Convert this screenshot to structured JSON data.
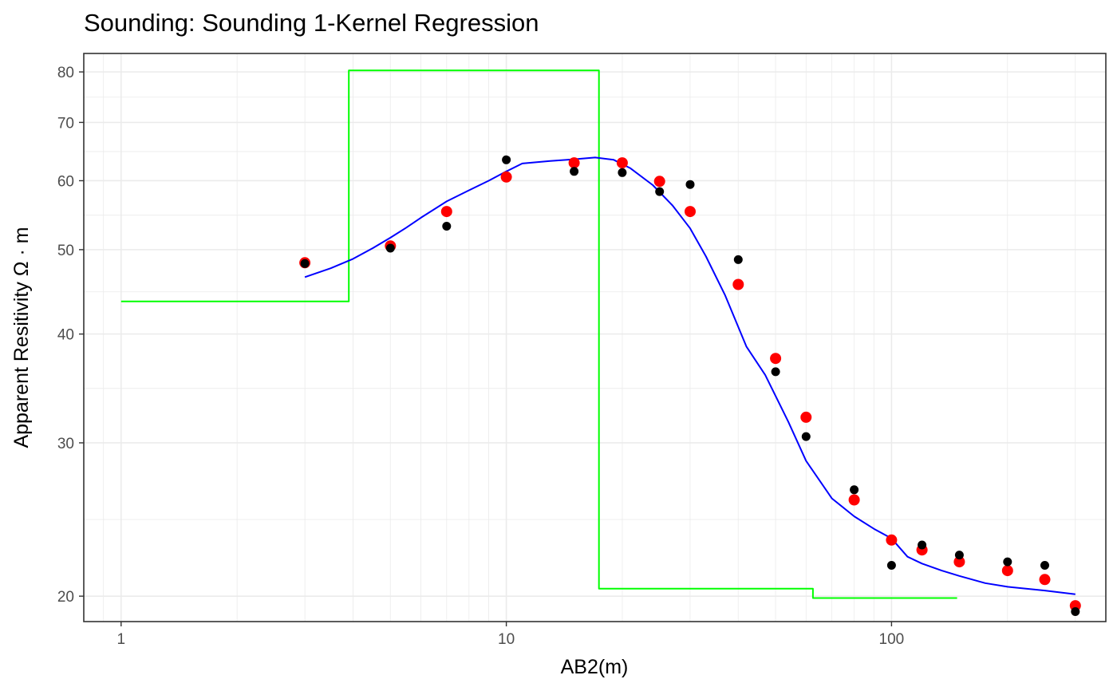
{
  "chart_data": {
    "type": "scatter",
    "title": "Sounding:  Sounding 1-Kernel Regression",
    "xlabel": "AB2(m)",
    "ylabel": "Apparent Resitivity Ω · m",
    "x_scale": "log",
    "y_scale": "log",
    "xlim": [
      0.8,
      360
    ],
    "ylim": [
      18.7,
      84
    ],
    "x_ticks": [
      {
        "value": 1,
        "label": "1"
      },
      {
        "value": 10,
        "label": "10"
      },
      {
        "value": 100,
        "label": "100"
      }
    ],
    "y_ticks": [
      {
        "value": 20,
        "label": "20"
      },
      {
        "value": 30,
        "label": "30"
      },
      {
        "value": 40,
        "label": "40"
      },
      {
        "value": 50,
        "label": "50"
      },
      {
        "value": 60,
        "label": "60"
      },
      {
        "value": 70,
        "label": "70"
      },
      {
        "value": 80,
        "label": "80"
      }
    ],
    "grid": true,
    "legend": "none",
    "colors": {
      "observed": "#000000",
      "kernel_points": "#ff0000",
      "kernel_curve": "#0000ff",
      "layer_model": "#00ff00"
    },
    "series": [
      {
        "key": "observed",
        "kind": "points",
        "x": [
          3,
          5,
          7,
          10,
          15,
          20,
          25,
          30,
          40,
          50,
          60,
          80,
          100,
          120,
          150,
          200,
          250,
          300
        ],
        "y": [
          48.2,
          50.2,
          53.2,
          63.4,
          61.5,
          61.3,
          58.3,
          59.4,
          48.7,
          36.2,
          30.5,
          26.5,
          21.7,
          22.9,
          22.3,
          21.9,
          21.7,
          19.2
        ]
      },
      {
        "key": "kernel_points",
        "kind": "points",
        "x": [
          3,
          5,
          7,
          10,
          15,
          20,
          25,
          30,
          40,
          50,
          60,
          80,
          100,
          120,
          150,
          200,
          250,
          300
        ],
        "y": [
          48.3,
          50.5,
          55.3,
          60.6,
          62.9,
          62.9,
          59.9,
          55.3,
          45.6,
          37.5,
          32.1,
          25.8,
          23.2,
          22.6,
          21.9,
          21.4,
          20.9,
          19.5
        ]
      },
      {
        "key": "kernel_curve",
        "kind": "line",
        "x": [
          3,
          3.5,
          4,
          4.5,
          5,
          5.5,
          6,
          7,
          8,
          9,
          10,
          11,
          13,
          15,
          17,
          19,
          21,
          24,
          27,
          30,
          33,
          37,
          42,
          47,
          54,
          60,
          70,
          80,
          90,
          100,
          110,
          120,
          135,
          150,
          175,
          200,
          250,
          300
        ],
        "y": [
          46.5,
          47.6,
          48.8,
          50.2,
          51.6,
          53.0,
          54.4,
          56.8,
          58.5,
          60.0,
          61.5,
          62.8,
          63.2,
          63.5,
          63.8,
          63.4,
          62.0,
          59.3,
          56.2,
          52.9,
          49.1,
          44.3,
          38.7,
          35.9,
          31.7,
          28.6,
          25.9,
          24.7,
          23.9,
          23.3,
          22.2,
          21.8,
          21.4,
          21.1,
          20.7,
          20.5,
          20.3,
          20.1
        ]
      },
      {
        "key": "layer_model",
        "kind": "step",
        "x": [
          1,
          3.9,
          3.9,
          17.4,
          17.4,
          62.5,
          62.5,
          148
        ],
        "y": [
          43.6,
          43.6,
          80.3,
          80.3,
          20.4,
          20.4,
          19.9,
          19.9
        ]
      }
    ]
  }
}
